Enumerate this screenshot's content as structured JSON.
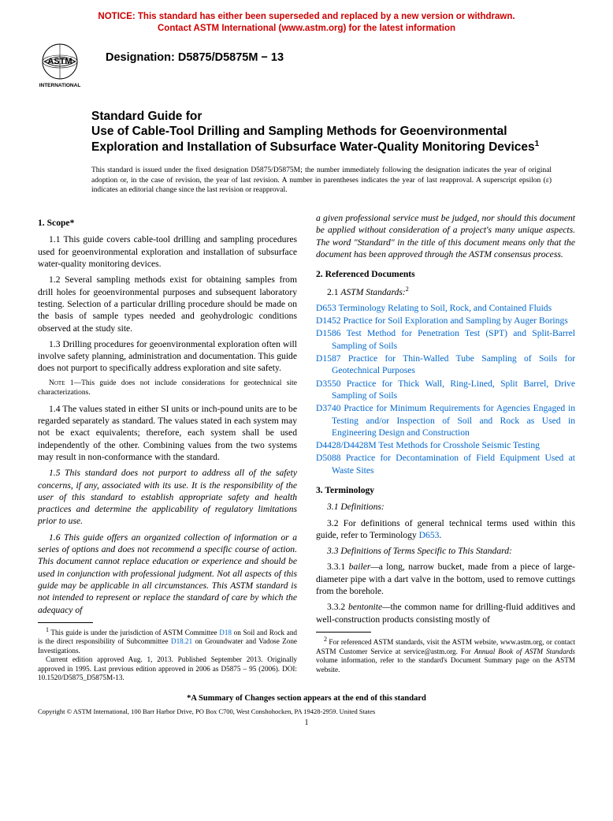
{
  "colors": {
    "notice": "#cc0000",
    "link": "#0066cc",
    "text": "#000000"
  },
  "notice": {
    "line1": "NOTICE: This standard has either been superseded and replaced by a new version or withdrawn.",
    "line2": "Contact ASTM International (www.astm.org) for the latest information"
  },
  "header": {
    "logo_top": "ASTM",
    "logo_bottom": "INTERNATIONAL",
    "designation_label": "Designation: ",
    "designation_value": "D5875/D5875M − 13"
  },
  "title": {
    "prefix": "Standard Guide for",
    "main": "Use of Cable-Tool Drilling and Sampling Methods for Geoenvironmental Exploration and Installation of Subsurface Water-Quality Monitoring Devices",
    "sup": "1"
  },
  "issue_note": "This standard is issued under the fixed designation D5875/D5875M; the number immediately following the designation indicates the year of original adoption or, in the case of revision, the year of last revision. A number in parentheses indicates the year of last reapproval. A superscript epsilon (ε) indicates an editorial change since the last revision or reapproval.",
  "left": {
    "sec1_head": "1. Scope*",
    "p11": "1.1 This guide covers cable-tool drilling and sampling procedures used for geoenvironmental exploration and installation of subsurface water-quality monitoring devices.",
    "p12": "1.2 Several sampling methods exist for obtaining samples from drill holes for geoenvironmental purposes and subsequent laboratory testing. Selection of a particular drilling procedure should be made on the basis of sample types needed and geohydrologic conditions observed at the study site.",
    "p13": "1.3 Drilling procedures for geoenvironmental exploration often will involve safety planning, administration and documentation. This guide does not purport to specifically address exploration and site safety.",
    "note1_label": "Note 1—",
    "note1_text": "This guide does not include considerations for geotechnical site characterizations.",
    "p14": "1.4 The values stated in either SI units or inch-pound units are to be regarded separately as standard. The values stated in each system may not be exact equivalents; therefore, each system shall be used independently of the other. Combining values from the two systems may result in non-conformance with the standard.",
    "p15": "1.5 This standard does not purport to address all of the safety concerns, if any, associated with its use. It is the responsibility of the user of this standard to establish appropriate safety and health practices and determine the applicability of regulatory limitations prior to use.",
    "p16": "1.6 This guide offers an organized collection of information or a series of options and does not recommend a specific course of action. This document cannot replace education or experience and should be used in conjunction with professional judgment. Not all aspects of this guide may be applicable in all circumstances. This ASTM standard is not intended to represent or replace the standard of care by which the adequacy of",
    "fn1_a": "This guide is under the jurisdiction of ASTM Committee ",
    "fn1_link1": "D18",
    "fn1_b": " on Soil and Rock and is the direct responsibility of Subcommittee ",
    "fn1_link2": "D18.21",
    "fn1_c": " on Groundwater and Vadose Zone Investigations.",
    "fn1_d": "Current edition approved Aug. 1, 2013. Published September 2013. Originally approved in 1995. Last previous edition approved in 2006 as D5875 – 95 (2006). DOI: 10.1520/D5875_D5875M-13."
  },
  "right": {
    "p16_cont": "a given professional service must be judged, nor should this document be applied without consideration of a project's many unique aspects. The word \"Standard\" in the title of this document means only that the document has been approved through the ASTM consensus process.",
    "sec2_head": "2. Referenced Documents",
    "p21_a": "2.1 ",
    "p21_b": "ASTM Standards:",
    "p21_sup": "2",
    "refs": [
      {
        "code": "D653",
        "text": " Terminology Relating to Soil, Rock, and Contained Fluids"
      },
      {
        "code": "D1452",
        "text": " Practice for Soil Exploration and Sampling by Auger Borings"
      },
      {
        "code": "D1586",
        "text": " Test Method for Penetration Test (SPT) and Split-Barrel Sampling of Soils"
      },
      {
        "code": "D1587",
        "text": " Practice for Thin-Walled Tube Sampling of Soils for Geotechnical Purposes"
      },
      {
        "code": "D3550",
        "text": " Practice for Thick Wall, Ring-Lined, Split Barrel, Drive Sampling of Soils"
      },
      {
        "code": "D3740",
        "text": " Practice for Minimum Requirements for Agencies Engaged in Testing and/or Inspection of Soil and Rock as Used in Engineering Design and Construction"
      },
      {
        "code": "D4428/D4428M",
        "text": " Test Methods for Crosshole Seismic Testing"
      },
      {
        "code": "D5088",
        "text": " Practice for Decontamination of Field Equipment Used at Waste Sites"
      }
    ],
    "sec3_head": "3. Terminology",
    "p31": "3.1 Definitions:",
    "p32_a": "3.2 For definitions of general technical terms used within this guide, refer to Terminology ",
    "p32_link": "D653",
    "p32_b": ".",
    "p33": "3.3 Definitions of Terms Specific to This Standard:",
    "p331_a": "3.3.1 ",
    "p331_term": "bailer—",
    "p331_b": "a long, narrow bucket, made from a piece of large-diameter pipe with a dart valve in the bottom, used to remove cuttings from the borehole.",
    "p332_a": "3.3.2 ",
    "p332_term": "bentonite—",
    "p332_b": "the common name for drilling-fluid additives and well-construction products consisting mostly of",
    "fn2_a": "For referenced ASTM standards, visit the ASTM website, www.astm.org, or contact ASTM Customer Service at service@astm.org. For ",
    "fn2_b": "Annual Book of ASTM Standards",
    "fn2_c": " volume information, refer to the standard's Document Summary page on the ASTM website."
  },
  "footer": {
    "summary": "*A Summary of Changes section appears at the end of this standard",
    "copyright": "Copyright © ASTM International, 100 Barr Harbor Drive, PO Box C700, West Conshohocken, PA 19428-2959. United States",
    "pagenum": "1"
  }
}
